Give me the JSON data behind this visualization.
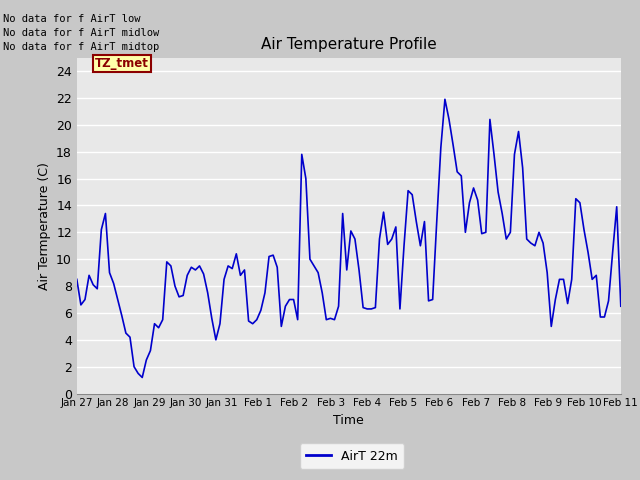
{
  "title": "Air Temperature Profile",
  "xlabel": "Time",
  "ylabel": "Air Termperature (C)",
  "legend_label": "AirT 22m",
  "line_color": "#0000CC",
  "fig_facecolor": "#C8C8C8",
  "plot_bg_color": "#E8E8E8",
  "ylim": [
    0,
    25
  ],
  "yticks": [
    0,
    2,
    4,
    6,
    8,
    10,
    12,
    14,
    16,
    18,
    20,
    22,
    24
  ],
  "no_data_texts": [
    "No data for f AirT low",
    "No data for f AirT midlow",
    "No data for f AirT midtop"
  ],
  "annotation_box": "TZ_tmet",
  "x_labels": [
    "Jan 27",
    "Jan 28",
    "Jan 29",
    "Jan 30",
    "Jan 31",
    "Feb 1",
    "Feb 2",
    "Feb 3",
    "Feb 4",
    "Feb 5",
    "Feb 6",
    "Feb 7",
    "Feb 8",
    "Feb 9",
    "Feb 10",
    "Feb 11"
  ],
  "temp_values": [
    8.5,
    6.6,
    7.0,
    8.8,
    8.1,
    7.8,
    12.2,
    13.4,
    9.0,
    8.2,
    7.0,
    5.8,
    4.5,
    4.2,
    2.0,
    1.5,
    1.2,
    2.5,
    3.2,
    5.2,
    4.9,
    5.5,
    9.8,
    9.5,
    8.0,
    7.2,
    7.3,
    8.8,
    9.4,
    9.2,
    9.5,
    8.9,
    7.5,
    5.6,
    4.0,
    5.2,
    8.5,
    9.5,
    9.3,
    10.4,
    8.8,
    9.2,
    5.4,
    5.2,
    5.5,
    6.2,
    7.5,
    10.2,
    10.3,
    9.4,
    5.0,
    6.5,
    7.0,
    7.0,
    5.5,
    17.8,
    16.0,
    10.0,
    9.5,
    9.0,
    7.5,
    5.5,
    5.6,
    5.5,
    6.5,
    13.4,
    9.2,
    12.1,
    11.5,
    9.2,
    6.4,
    6.3,
    6.3,
    6.4,
    11.5,
    13.5,
    11.1,
    11.5,
    12.4,
    6.3,
    11.0,
    15.1,
    14.8,
    12.8,
    11.0,
    12.8,
    6.9,
    7.0,
    12.8,
    18.3,
    21.9,
    20.4,
    18.5,
    16.5,
    16.2,
    12.0,
    14.2,
    15.3,
    14.4,
    11.9,
    12.0,
    20.4,
    17.8,
    15.0,
    13.4,
    11.5,
    12.0,
    17.8,
    19.5,
    16.8,
    11.5,
    11.2,
    11.0,
    12.0,
    11.2,
    9.0,
    5.0,
    7.0,
    8.5,
    8.5,
    6.7,
    8.5,
    14.5,
    14.2,
    12.2,
    10.5,
    8.5,
    8.8,
    5.7,
    5.7,
    6.9,
    10.5,
    13.9,
    6.5
  ]
}
